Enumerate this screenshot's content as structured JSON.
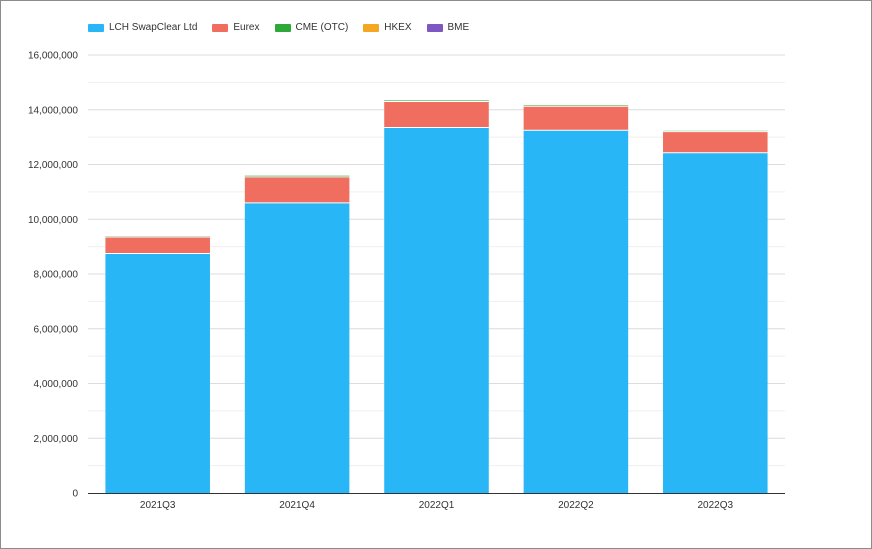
{
  "chart_data": {
    "type": "bar",
    "stacked": true,
    "categories": [
      "2021Q3",
      "2021Q4",
      "2022Q1",
      "2022Q2",
      "2022Q3"
    ],
    "series": [
      {
        "name": "LCH SwapClear Ltd",
        "color": "#29b6f6",
        "values": [
          8750000,
          10600000,
          13350000,
          13250000,
          12430000
        ]
      },
      {
        "name": "Eurex",
        "color": "#f06e5f",
        "values": [
          600000,
          950000,
          950000,
          880000,
          770000
        ]
      },
      {
        "name": "CME (OTC)",
        "color": "#2ea836",
        "values": [
          30000,
          40000,
          40000,
          35000,
          30000
        ]
      },
      {
        "name": "HKEX",
        "color": "#f5a623",
        "values": [
          0,
          0,
          0,
          0,
          0
        ]
      },
      {
        "name": "BME",
        "color": "#7e57c2",
        "values": [
          0,
          0,
          0,
          0,
          0
        ]
      }
    ],
    "ylim": [
      0,
      16000000
    ],
    "yticks": [
      0,
      2000000,
      4000000,
      6000000,
      8000000,
      10000000,
      12000000,
      14000000,
      16000000
    ],
    "ytick_labels": [
      "0",
      "2,000,000",
      "4,000,000",
      "6,000,000",
      "8,000,000",
      "10,000,000",
      "12,000,000",
      "14,000,000",
      "16,000,000"
    ],
    "grid": true,
    "legend_position": "top-left",
    "title": "",
    "xlabel": "",
    "ylabel": ""
  }
}
